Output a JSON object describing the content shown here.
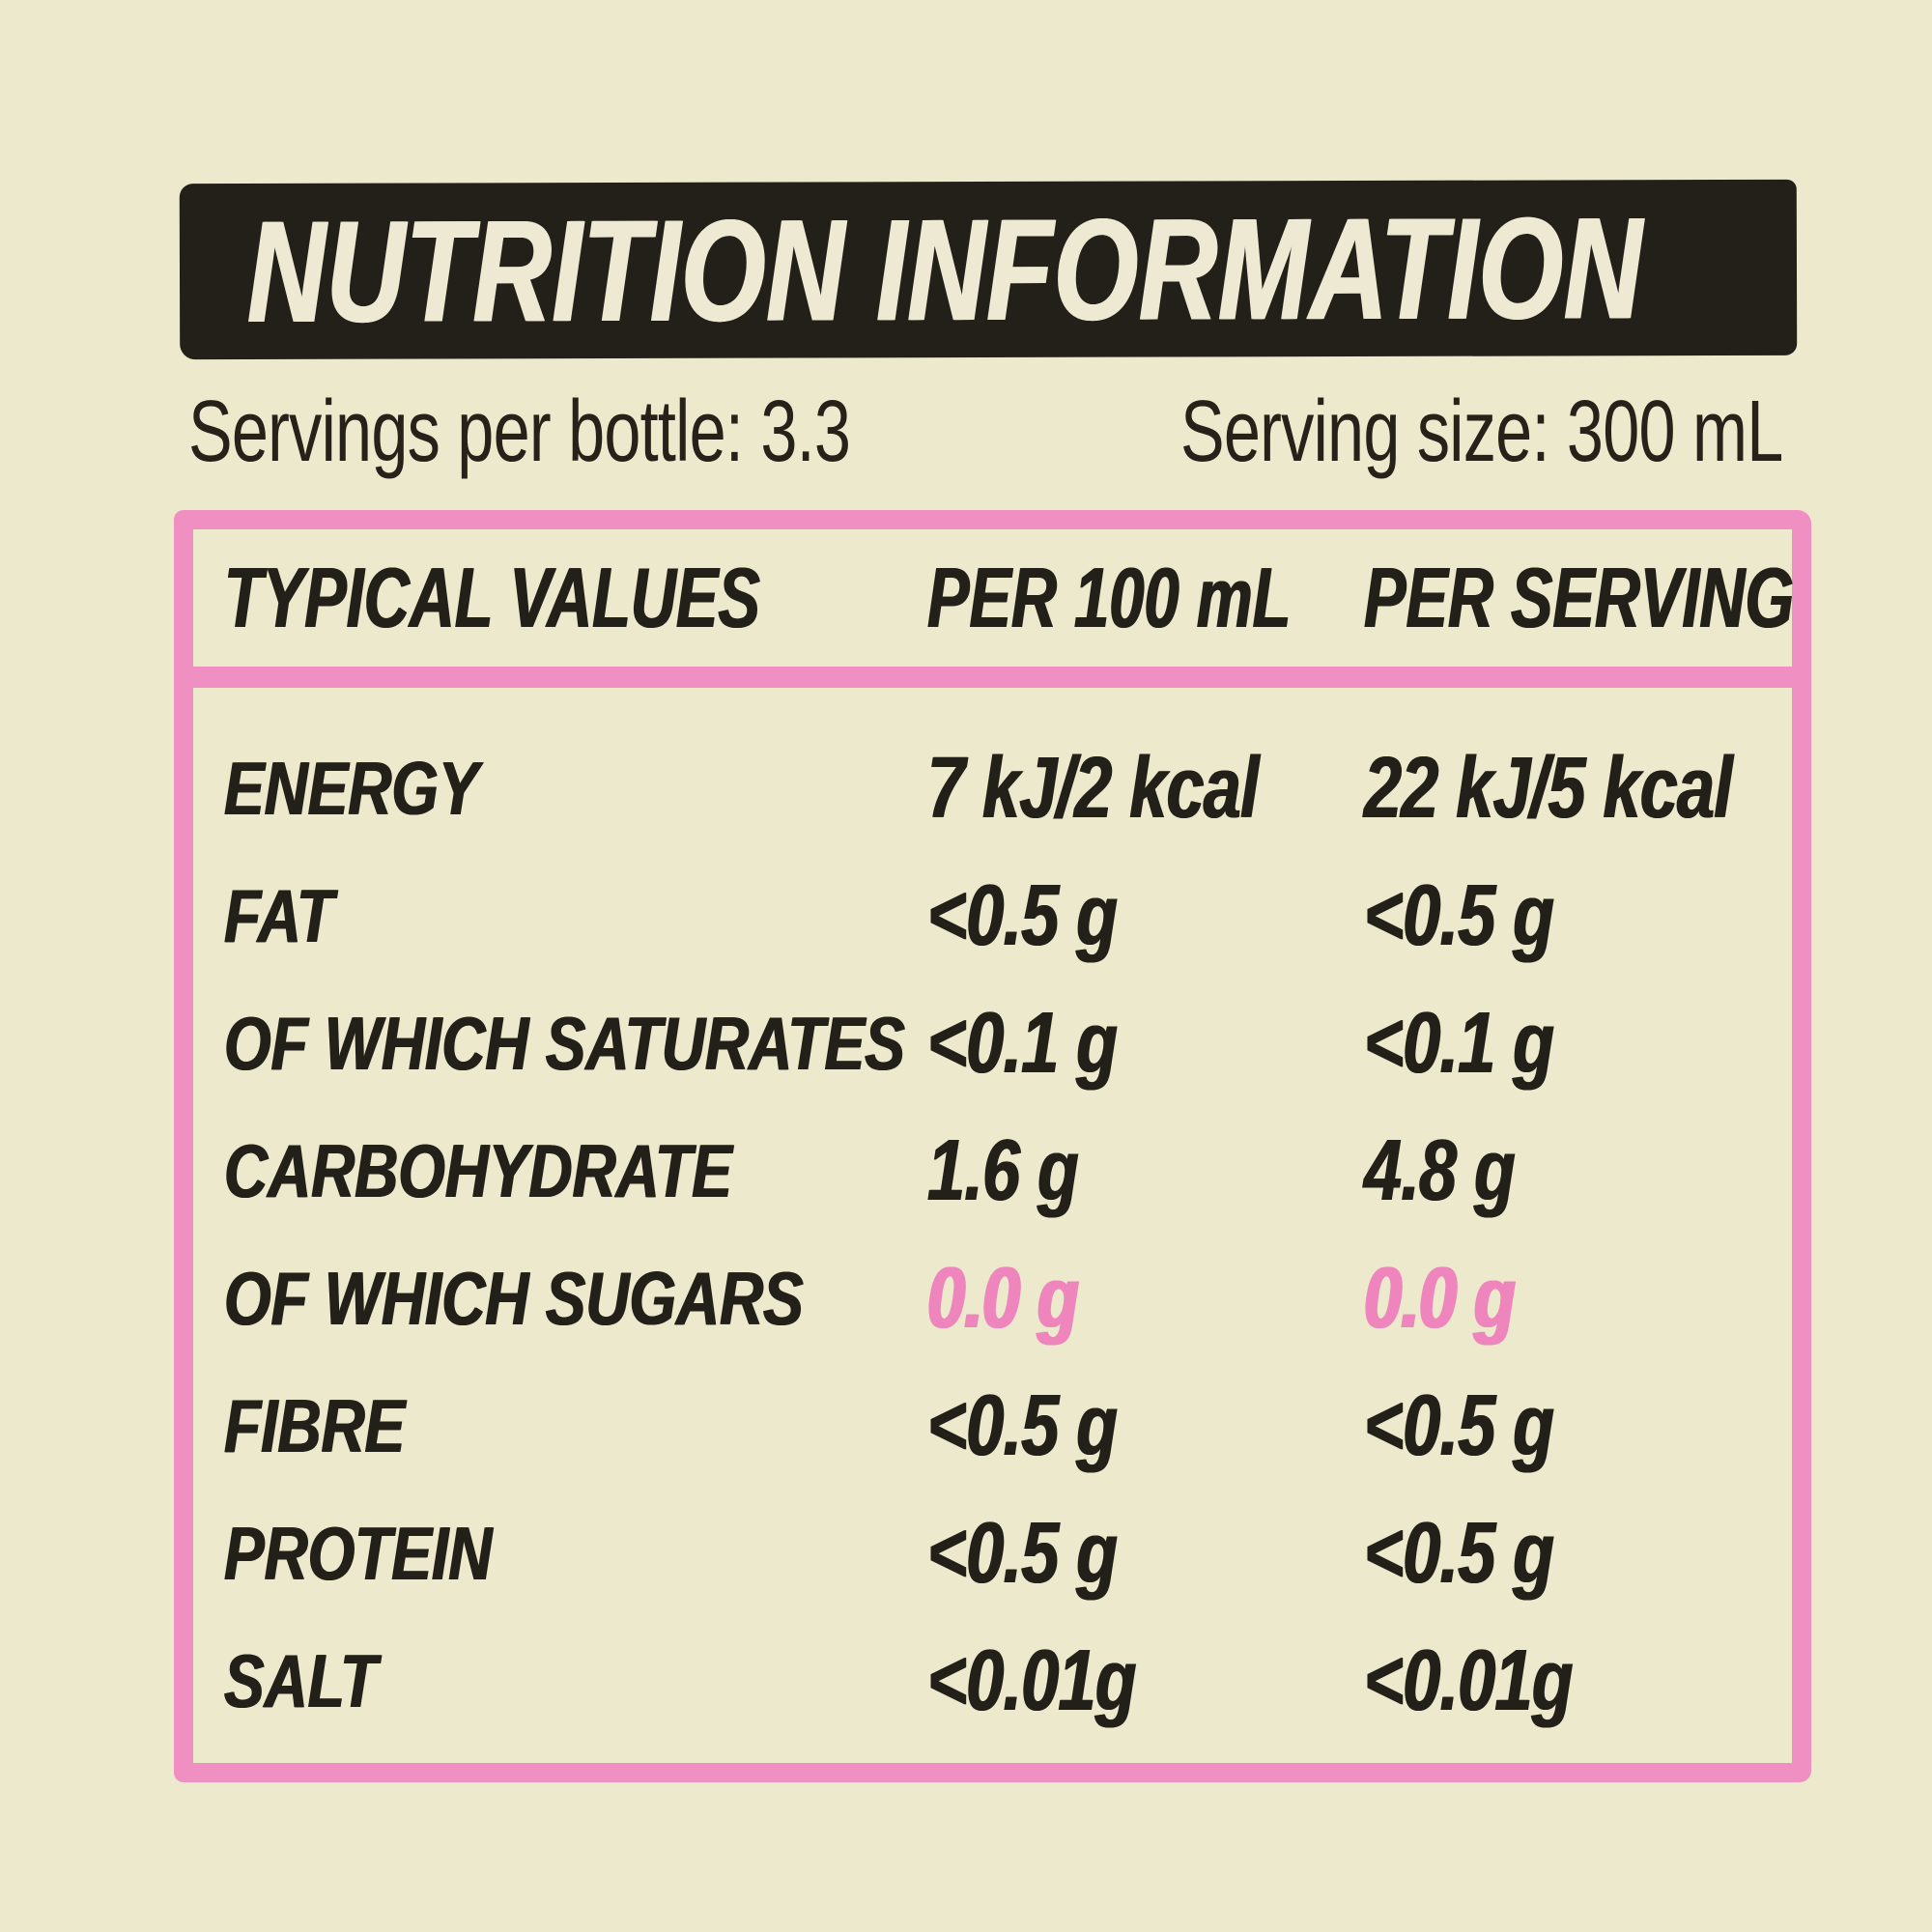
{
  "banner": {
    "title": "NUTRITION INFORMATION"
  },
  "servings": {
    "per_bottle": "Servings per bottle: 3.3",
    "size": "Serving size: 300 mL"
  },
  "table": {
    "columns": [
      "TYPICAL VALUES",
      "PER 100 mL",
      "PER SERVING"
    ],
    "rows": [
      {
        "label": "ENERGY",
        "per_100ml": "7 kJ/2 kcal",
        "per_serving": "22 kJ/5 kcal",
        "highlight": false
      },
      {
        "label": "FAT",
        "per_100ml": "<0.5 g",
        "per_serving": "<0.5 g",
        "highlight": false
      },
      {
        "label": "OF WHICH SATURATES",
        "per_100ml": "<0.1 g",
        "per_serving": "<0.1 g",
        "highlight": false
      },
      {
        "label": "CARBOHYDRATE",
        "per_100ml": "1.6 g",
        "per_serving": "4.8 g",
        "highlight": false
      },
      {
        "label": "OF WHICH SUGARS",
        "per_100ml": "0.0 g",
        "per_serving": "0.0 g",
        "highlight": true
      },
      {
        "label": "FIBRE",
        "per_100ml": "<0.5 g",
        "per_serving": "<0.5 g",
        "highlight": false
      },
      {
        "label": "PROTEIN",
        "per_100ml": "<0.5 g",
        "per_serving": "<0.5 g",
        "highlight": false
      },
      {
        "label": "SALT",
        "per_100ml": "<0.01g",
        "per_serving": "<0.01g",
        "highlight": false
      }
    ]
  },
  "colors": {
    "background": "#ECE9CC",
    "ink": "#231F19",
    "banner_background": "#231F19",
    "banner_text": "#EDE9D2",
    "accent_pink_border": "#F08FC2",
    "accent_pink_text": "#EE86BD"
  }
}
